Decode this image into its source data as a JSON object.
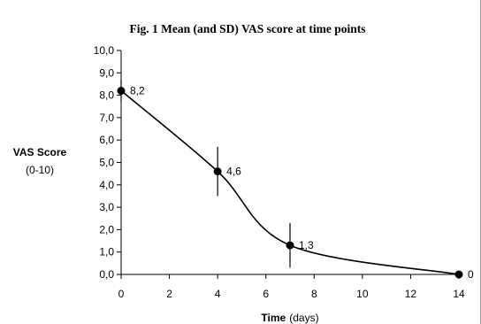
{
  "chart_data": {
    "type": "line",
    "title": "Fig. 1 Mean (and SD) VAS score at time points",
    "ylabel": "VAS Score",
    "ylabel_sub": "(0-10)",
    "xlabel": "Time",
    "xlabel_unit": "(days)",
    "xlim": [
      0,
      14
    ],
    "ylim": [
      0,
      10
    ],
    "x_ticks": [
      "0",
      "2",
      "4",
      "6",
      "8",
      "10",
      "12",
      "14"
    ],
    "y_ticks": [
      "0,0",
      "1,0",
      "2,0",
      "3,0",
      "4,0",
      "5,0",
      "6,0",
      "7,0",
      "8,0",
      "9,0",
      "10,0"
    ],
    "grid": false,
    "series": [
      {
        "x": [
          0,
          4,
          7,
          14
        ],
        "y": [
          8.2,
          4.6,
          1.3,
          0
        ],
        "sd": [
          0.5,
          1.1,
          1.0,
          0
        ],
        "labels": [
          "8,2",
          "4,6",
          "1,3",
          "0"
        ]
      }
    ]
  }
}
